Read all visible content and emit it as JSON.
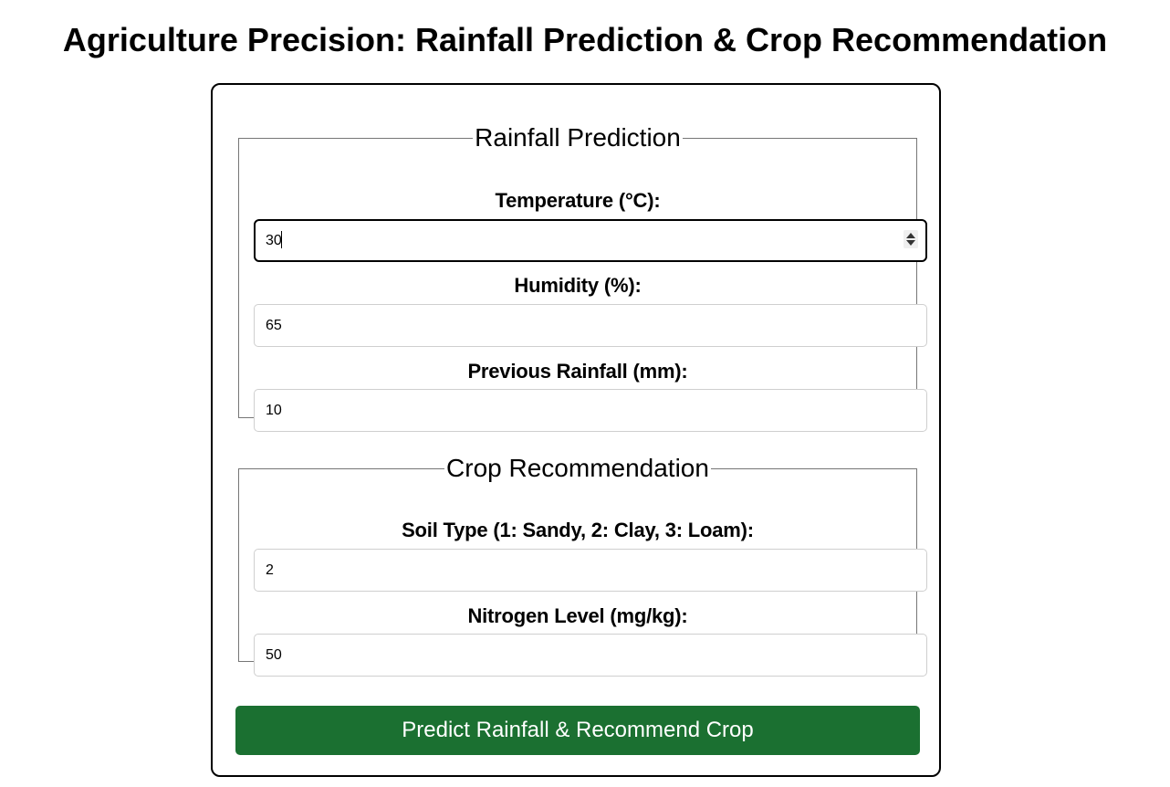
{
  "page": {
    "title": "Agriculture Precision: Rainfall Prediction & Crop Recommendation"
  },
  "rainfall": {
    "legend": "Rainfall Prediction",
    "temperature": {
      "label": "Temperature (°C):",
      "value": "30"
    },
    "humidity": {
      "label": "Humidity (%):",
      "value": "65"
    },
    "previous_rainfall": {
      "label": "Previous Rainfall (mm):",
      "value": "10"
    }
  },
  "crop": {
    "legend": "Crop Recommendation",
    "soil_type": {
      "label": "Soil Type (1: Sandy, 2: Clay, 3: Loam):",
      "value": "2"
    },
    "nitrogen": {
      "label": "Nitrogen Level (mg/kg):",
      "value": "50"
    }
  },
  "actions": {
    "submit_label": "Predict Rainfall & Recommend Crop"
  },
  "colors": {
    "button_bg": "#1b7031",
    "button_text": "#ffffff"
  }
}
